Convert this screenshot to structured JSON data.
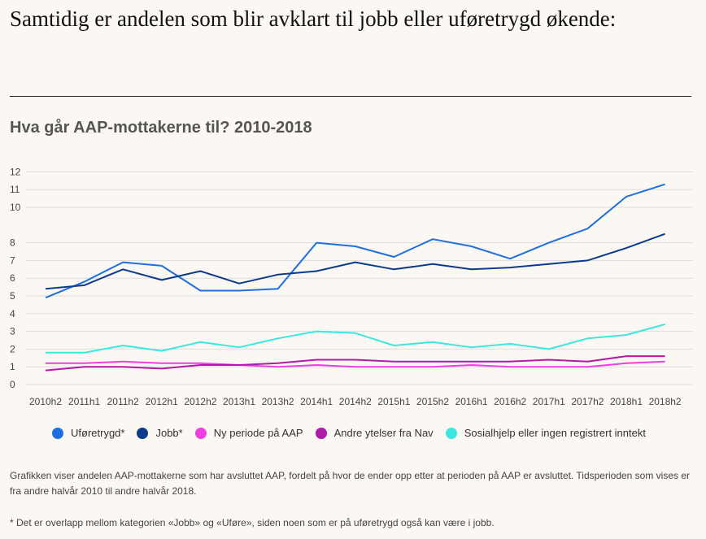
{
  "headline": "Samtidig er andelen som blir avklart til jobb eller uføretrygd økende:",
  "chart_data": {
    "type": "line",
    "title": "Hva går AAP-mottakerne til? 2010-2018",
    "xlabel": "",
    "ylabel": "",
    "ylim": [
      0,
      12
    ],
    "yticks": [
      0,
      1,
      2,
      3,
      4,
      5,
      6,
      7,
      8,
      10,
      11,
      12
    ],
    "grid": true,
    "legend_position": "bottom",
    "categories": [
      "2010h2",
      "2011h1",
      "2011h2",
      "2012h1",
      "2012h2",
      "2013h1",
      "2013h2",
      "2014h1",
      "2014h2",
      "2015h1",
      "2015h2",
      "2016h1",
      "2016h2",
      "2017h1",
      "2017h2",
      "2018h1",
      "2018h2"
    ],
    "series": [
      {
        "name": "Uføretrygd*",
        "color": "#1e6fe0",
        "values": [
          4.9,
          5.8,
          6.9,
          6.7,
          5.3,
          5.3,
          5.4,
          8.0,
          7.8,
          7.2,
          8.2,
          7.8,
          7.1,
          8.0,
          8.8,
          10.6,
          11.3
        ]
      },
      {
        "name": "Jobb*",
        "color": "#0d3b8c",
        "values": [
          5.4,
          5.6,
          6.5,
          5.9,
          6.4,
          5.7,
          6.2,
          6.4,
          6.9,
          6.5,
          6.8,
          6.5,
          6.6,
          6.8,
          7.0,
          7.7,
          8.5
        ]
      },
      {
        "name": "Ny periode på AAP",
        "color": "#f03fe0",
        "values": [
          1.2,
          1.2,
          1.3,
          1.2,
          1.2,
          1.1,
          1.0,
          1.1,
          1.0,
          1.0,
          1.0,
          1.1,
          1.0,
          1.0,
          1.0,
          1.2,
          1.3
        ]
      },
      {
        "name": "Andre ytelser fra Nav",
        "color": "#b01aa8",
        "values": [
          0.8,
          1.0,
          1.0,
          0.9,
          1.1,
          1.1,
          1.2,
          1.4,
          1.4,
          1.3,
          1.3,
          1.3,
          1.3,
          1.4,
          1.3,
          1.6,
          1.6
        ]
      },
      {
        "name": "Sosialhjelp eller ingen registrert inntekt",
        "color": "#3ee6e0",
        "values": [
          1.8,
          1.8,
          2.2,
          1.9,
          2.4,
          2.1,
          2.6,
          3.0,
          2.9,
          2.2,
          2.4,
          2.1,
          2.3,
          2.0,
          2.6,
          2.8,
          3.4
        ]
      }
    ]
  },
  "note": "Grafikken viser andelen AAP-mottakerne som har avsluttet AAP, fordelt på hvor de ender opp etter at perioden på AAP er avsluttet. Tidsperioden som vises er fra andre halvår 2010 til andre halvår 2018.",
  "footnote": "* Det er overlapp mellom kategorien «Jobb» og «Uføre», siden noen som er på uføretrygd også kan være i jobb."
}
